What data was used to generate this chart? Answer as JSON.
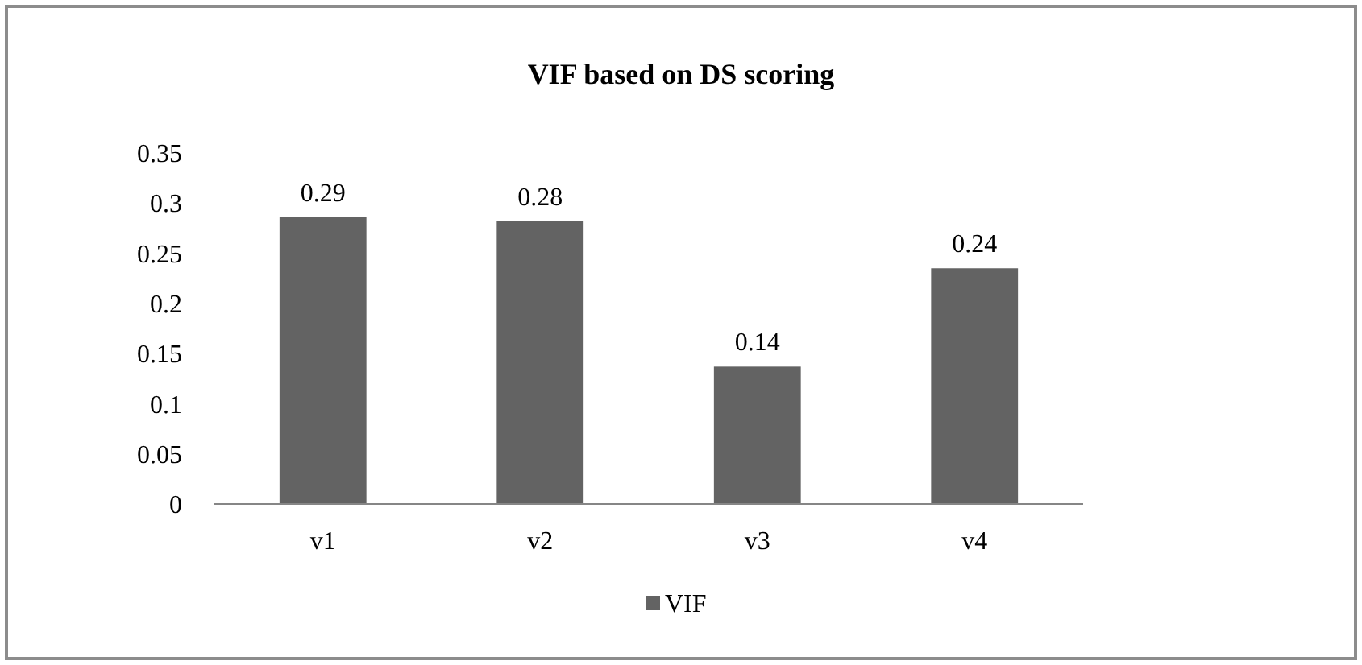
{
  "chart_data": {
    "type": "bar",
    "title": "VIF based on DS scoring",
    "categories": [
      "v1",
      "v2",
      "v3",
      "v4"
    ],
    "series": [
      {
        "name": "VIF",
        "color": "#636363",
        "values": [
          0.286,
          0.282,
          0.137,
          0.235
        ],
        "value_labels": [
          "0.29",
          "0.28",
          "0.14",
          "0.24"
        ]
      }
    ],
    "ylim": [
      0,
      0.35
    ],
    "yticks": [
      0,
      0.05,
      0.1,
      0.15,
      0.2,
      0.25,
      0.3,
      0.35
    ],
    "grid": false,
    "legend": "bottom"
  }
}
